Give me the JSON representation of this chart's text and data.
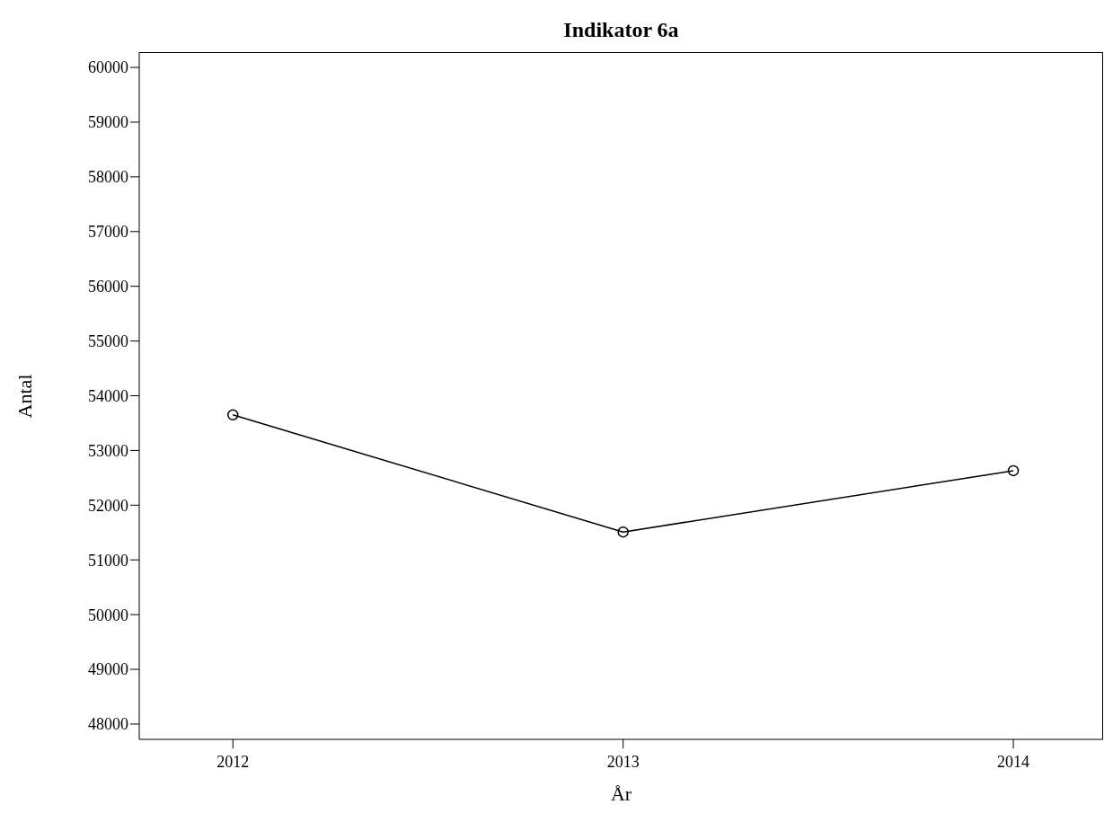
{
  "chart_data": {
    "type": "line",
    "title": "Indikator 6a",
    "xlabel": "År",
    "ylabel": "Antal",
    "x": [
      2012,
      2013,
      2014
    ],
    "series": [
      {
        "color": "#000000",
        "values": [
          53650,
          51510,
          52630
        ]
      }
    ],
    "xlim": [
      2011.76,
      2014.23
    ],
    "xticks": [
      2012,
      2013,
      2014
    ],
    "ylim": [
      47720,
      60280
    ],
    "yticks": [
      48000,
      49000,
      50000,
      51000,
      52000,
      53000,
      54000,
      55000,
      56000,
      57000,
      58000,
      59000,
      60000
    ],
    "marker": "circle",
    "line_style": "solid",
    "grid": false,
    "legend": false
  }
}
